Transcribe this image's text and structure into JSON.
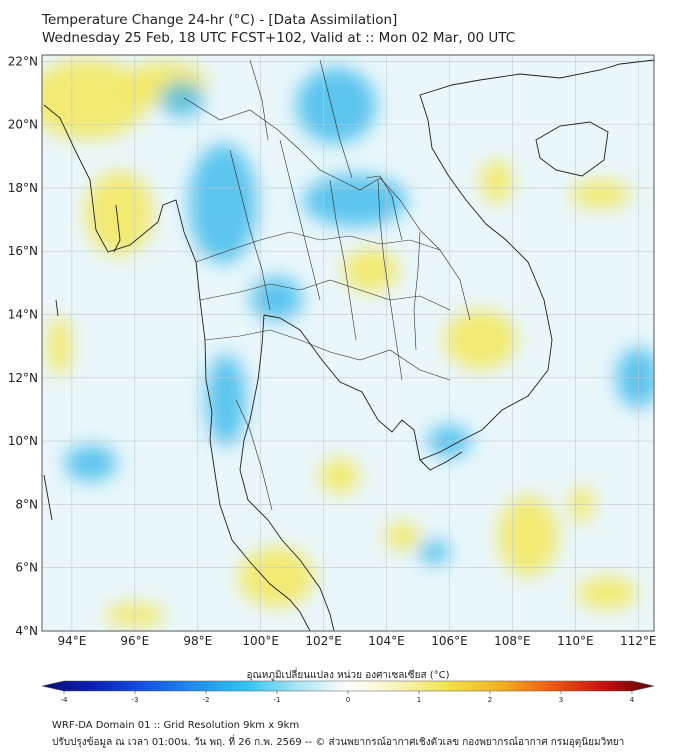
{
  "header": {
    "title_line1": "Temperature Change 24-hr (°C) - [Data Assimilation]",
    "title_line2": "Wednesday 25 Feb, 18 UTC FCST+102, Valid at :: Mon 02 Mar, 00 UTC"
  },
  "map": {
    "lat_labels": [
      "22°N",
      "20°N",
      "18°N",
      "16°N",
      "14°N",
      "12°N",
      "10°N",
      "8°N",
      "6°N",
      "4°N"
    ],
    "lat_values": [
      22,
      20,
      18,
      16,
      14,
      12,
      10,
      8,
      6,
      4
    ],
    "lon_labels": [
      "94°E",
      "96°E",
      "98°E",
      "100°E",
      "102°E",
      "104°E",
      "106°E",
      "108°E",
      "110°E",
      "112°E"
    ],
    "lon_values": [
      94,
      96,
      98,
      100,
      102,
      104,
      106,
      108,
      110,
      112
    ],
    "lat_range": [
      4,
      22.2
    ],
    "lon_range": [
      93.05,
      112.5
    ],
    "warm_color": "#f3e85a",
    "cool_color": "#2fb4ea",
    "neutral_color": "#e9f7fb"
  },
  "colorbar": {
    "title": "อุณหภูมิเปลี่ยนแปลง หน่วย องศาเซลเซียส (°C)",
    "tick_labels": [
      "-4",
      "-3",
      "-2",
      "-1",
      "0",
      "1",
      "2",
      "3",
      "4"
    ],
    "tick_values": [
      -4,
      -3,
      -2,
      -1,
      0,
      1,
      2,
      3,
      4
    ],
    "range": [
      -4,
      4
    ],
    "colors": [
      "#08106e",
      "#0a1fb8",
      "#1650e6",
      "#1f8fee",
      "#31c4f1",
      "#a7e4f5",
      "#ffffff",
      "#f8f4b9",
      "#f2e246",
      "#f1b11f",
      "#ee5a11",
      "#c81010",
      "#5a0505"
    ]
  },
  "footer": {
    "line1": "WRF-DA Domain 01 :: Grid Resolution 9km x 9km",
    "line2": "ปรับปรุงข้อมูล ณ เวลา 01:00น. วัน พฤ. ที่ 26 ก.พ. 2569 -- © ส่วนพยากรณ์อากาศเชิงตัวเลข กองพยากรณ์อากาศ กรมอุตุนิยมวิทยา"
  }
}
